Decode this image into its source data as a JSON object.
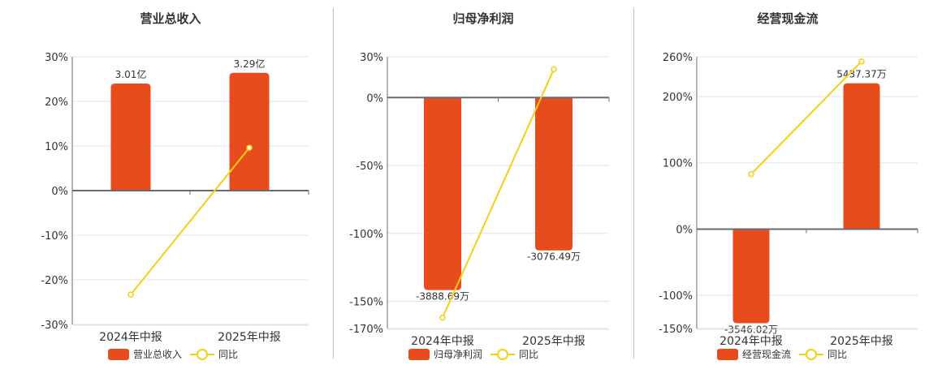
{
  "colors": {
    "bar": "#e84c1c",
    "line": "#f5cf14",
    "grid": "#dde3ee",
    "axis": "#666b75",
    "text": "#333333"
  },
  "panels": [
    {
      "title": "营业总收入",
      "legend_bar": "营业总收入",
      "legend_line": "同比"
    },
    {
      "title": "归母净利润",
      "legend_bar": "归母净利润",
      "legend_line": "同比"
    },
    {
      "title": "经营现金流",
      "legend_bar": "经营现金流",
      "legend_line": "同比"
    }
  ],
  "chart_data": [
    {
      "type": "bar",
      "title": "营业总收入",
      "categories": [
        "2024年中报",
        "2025年中报"
      ],
      "series": [
        {
          "name": "营业总收入",
          "type": "bar",
          "values": [
            24.0,
            26.4
          ],
          "labels": [
            "3.01亿",
            "3.29亿"
          ]
        },
        {
          "name": "同比",
          "type": "line",
          "values": [
            -23.3,
            9.6
          ]
        }
      ],
      "yticks": [
        "30%",
        "20%",
        "10%",
        "0%",
        "-10%",
        "-20%",
        "-30%"
      ],
      "ylim": [
        -30,
        30
      ],
      "legend_position": "bottom"
    },
    {
      "type": "bar",
      "title": "归母净利润",
      "categories": [
        "2024年中报",
        "2025年中报"
      ],
      "series": [
        {
          "name": "归母净利润",
          "type": "bar",
          "values": [
            -141.7,
            -112.5
          ],
          "labels": [
            "-3888.69万",
            "-3076.49万"
          ]
        },
        {
          "name": "同比",
          "type": "line",
          "values": [
            -162,
            20.8
          ]
        }
      ],
      "yticks": [
        "30%",
        "0%",
        "-50%",
        "-100%",
        "-150%",
        "-170%"
      ],
      "ylim": [
        -170,
        30
      ],
      "legend_position": "bottom"
    },
    {
      "type": "bar",
      "title": "经营现金流",
      "categories": [
        "2024年中报",
        "2025年中报"
      ],
      "series": [
        {
          "name": "经营现金流",
          "type": "bar",
          "values": [
            -142,
            220
          ],
          "labels": [
            "-3546.02万",
            "5437.37万"
          ]
        },
        {
          "name": "同比",
          "type": "line",
          "values": [
            83,
            253
          ]
        }
      ],
      "yticks": [
        "260%",
        "200%",
        "100%",
        "0%",
        "-100%",
        "-150%"
      ],
      "ylim": [
        -150,
        260
      ],
      "legend_position": "bottom"
    }
  ]
}
